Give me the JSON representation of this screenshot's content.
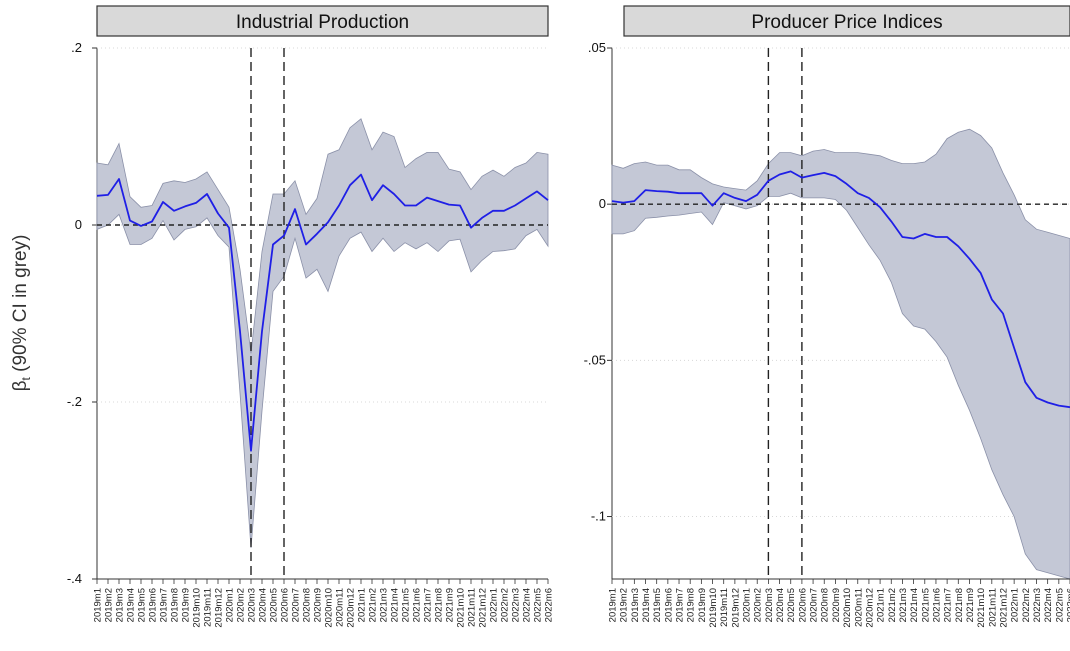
{
  "chart_data": [
    {
      "type": "line",
      "title": "Industrial Production",
      "ylabel": "β",
      "ylabel_subscript": "t",
      "ylabel_suffix": "(90% CI in grey)",
      "yticks": [
        {
          "value": 0.2,
          "label": ".2"
        },
        {
          "value": 0,
          "label": "0"
        },
        {
          "value": -0.2,
          "label": "-.2"
        },
        {
          "value": -0.4,
          "label": "-.4"
        }
      ],
      "ylim": [
        -0.4,
        0.2
      ],
      "reference_line_y": 0,
      "vlines_x": [
        "2020m3",
        "2020m6"
      ],
      "colors": {
        "line": "#1f1fe6",
        "ci": "#c4c8d6",
        "ci_edge": "#8a90a8"
      },
      "x": [
        "2019m1",
        "2019m2",
        "2019m3",
        "2019m4",
        "2019m5",
        "2019m6",
        "2019m7",
        "2019m8",
        "2019m9",
        "2019m10",
        "2019m11",
        "2019m12",
        "2020m1",
        "2020m2",
        "2020m3",
        "2020m4",
        "2020m5",
        "2020m6",
        "2020m7",
        "2020m8",
        "2020m9",
        "2020m10",
        "2020m11",
        "2020m12",
        "2021m1",
        "2021m2",
        "2021m3",
        "2021m4",
        "2021m5",
        "2021m6",
        "2021m7",
        "2021m8",
        "2021m9",
        "2021m10",
        "2021m11",
        "2021m12",
        "2022m1",
        "2022m2",
        "2022m3",
        "2022m4",
        "2022m5",
        "2022m6"
      ],
      "series": [
        {
          "role": "estimate",
          "values": [
            0.033,
            0.034,
            0.052,
            0.005,
            -0.001,
            0.004,
            0.026,
            0.016,
            0.021,
            0.025,
            0.035,
            0.013,
            -0.003,
            -0.12,
            -0.255,
            -0.12,
            -0.022,
            -0.012,
            0.018,
            -0.022,
            -0.01,
            0.003,
            0.022,
            0.045,
            0.057,
            0.028,
            0.045,
            0.035,
            0.022,
            0.022,
            0.031,
            0.027,
            0.023,
            0.022,
            -0.003,
            0.008,
            0.016,
            0.016,
            0.022,
            0.03,
            0.038,
            0.028
          ]
        },
        {
          "role": "ci_upper",
          "values": [
            0.07,
            0.068,
            0.092,
            0.032,
            0.02,
            0.022,
            0.047,
            0.05,
            0.048,
            0.052,
            0.06,
            0.04,
            0.02,
            -0.05,
            -0.145,
            -0.03,
            0.035,
            0.035,
            0.05,
            0.012,
            0.03,
            0.08,
            0.085,
            0.11,
            0.12,
            0.085,
            0.105,
            0.1,
            0.065,
            0.075,
            0.082,
            0.082,
            0.063,
            0.06,
            0.04,
            0.055,
            0.062,
            0.055,
            0.065,
            0.07,
            0.082,
            0.08
          ]
        },
        {
          "role": "ci_lower",
          "values": [
            -0.005,
            0.0,
            0.012,
            -0.022,
            -0.022,
            -0.015,
            0.005,
            -0.017,
            -0.005,
            -0.002,
            0.008,
            -0.012,
            -0.025,
            -0.19,
            -0.365,
            -0.21,
            -0.075,
            -0.058,
            -0.015,
            -0.06,
            -0.05,
            -0.075,
            -0.035,
            -0.015,
            -0.008,
            -0.03,
            -0.015,
            -0.03,
            -0.02,
            -0.027,
            -0.02,
            -0.03,
            -0.018,
            -0.016,
            -0.053,
            -0.04,
            -0.03,
            -0.029,
            -0.027,
            -0.012,
            -0.005,
            -0.024
          ]
        }
      ]
    },
    {
      "type": "line",
      "title": "Producer Price Indices",
      "yticks": [
        {
          "value": 0.05,
          "label": ".05"
        },
        {
          "value": 0,
          "label": "0"
        },
        {
          "value": -0.05,
          "label": "-.05"
        },
        {
          "value": -0.1,
          "label": "-.1"
        }
      ],
      "ylim": [
        -0.12,
        0.05
      ],
      "reference_line_y": 0,
      "vlines_x": [
        "2020m3",
        "2020m6"
      ],
      "colors": {
        "line": "#1f1fe6",
        "ci": "#c4c8d6",
        "ci_edge": "#8a90a8"
      },
      "x": [
        "2019m1",
        "2019m2",
        "2019m3",
        "2019m4",
        "2019m5",
        "2019m6",
        "2019m7",
        "2019m8",
        "2019m9",
        "2019m10",
        "2019m11",
        "2019m12",
        "2020m1",
        "2020m2",
        "2020m3",
        "2020m4",
        "2020m5",
        "2020m6",
        "2020m7",
        "2020m8",
        "2020m9",
        "2020m10",
        "2020m11",
        "2020m12",
        "2021m1",
        "2021m2",
        "2021m3",
        "2021m4",
        "2021m5",
        "2021m6",
        "2021m7",
        "2021m8",
        "2021m9",
        "2021m10",
        "2021m11",
        "2021m12",
        "2022m1",
        "2022m2",
        "2022m3",
        "2022m4",
        "2022m5",
        "2022m6"
      ],
      "series": [
        {
          "role": "estimate",
          "values": [
            0.001,
            0.0005,
            0.001,
            0.0045,
            0.0042,
            0.004,
            0.0035,
            0.0035,
            0.0035,
            -0.0005,
            0.0035,
            0.002,
            0.001,
            0.003,
            0.0075,
            0.0095,
            0.0105,
            0.0085,
            0.0093,
            0.01,
            0.009,
            0.0065,
            0.0035,
            0.002,
            -0.001,
            -0.0055,
            -0.0105,
            -0.011,
            -0.0095,
            -0.0105,
            -0.0105,
            -0.0135,
            -0.0175,
            -0.022,
            -0.0305,
            -0.035,
            -0.046,
            -0.057,
            -0.062,
            -0.0635,
            -0.0645,
            -0.065
          ]
        },
        {
          "role": "ci_upper",
          "values": [
            0.0125,
            0.0115,
            0.013,
            0.0135,
            0.0125,
            0.0125,
            0.011,
            0.011,
            0.0085,
            0.0065,
            0.0055,
            0.005,
            0.0045,
            0.0075,
            0.013,
            0.0165,
            0.0165,
            0.0155,
            0.017,
            0.0175,
            0.0165,
            0.0165,
            0.0165,
            0.016,
            0.0155,
            0.014,
            0.013,
            0.013,
            0.0135,
            0.016,
            0.021,
            0.023,
            0.024,
            0.022,
            0.018,
            0.01,
            0.003,
            -0.005,
            -0.008,
            -0.009,
            -0.01,
            -0.011
          ]
        },
        {
          "role": "ci_lower",
          "values": [
            -0.0095,
            -0.0095,
            -0.0085,
            -0.0045,
            -0.0042,
            -0.0038,
            -0.0035,
            -0.003,
            -0.0025,
            -0.0065,
            0.0005,
            -0.0005,
            -0.0015,
            -0.0005,
            0.0025,
            0.0025,
            0.0035,
            0.002,
            0.002,
            0.002,
            0.0015,
            -0.002,
            -0.0075,
            -0.013,
            -0.018,
            -0.025,
            -0.035,
            -0.039,
            -0.04,
            -0.044,
            -0.049,
            -0.058,
            -0.066,
            -0.075,
            -0.085,
            -0.093,
            -0.1,
            -0.112,
            -0.117,
            -0.118,
            -0.119,
            -0.12
          ]
        }
      ]
    }
  ]
}
